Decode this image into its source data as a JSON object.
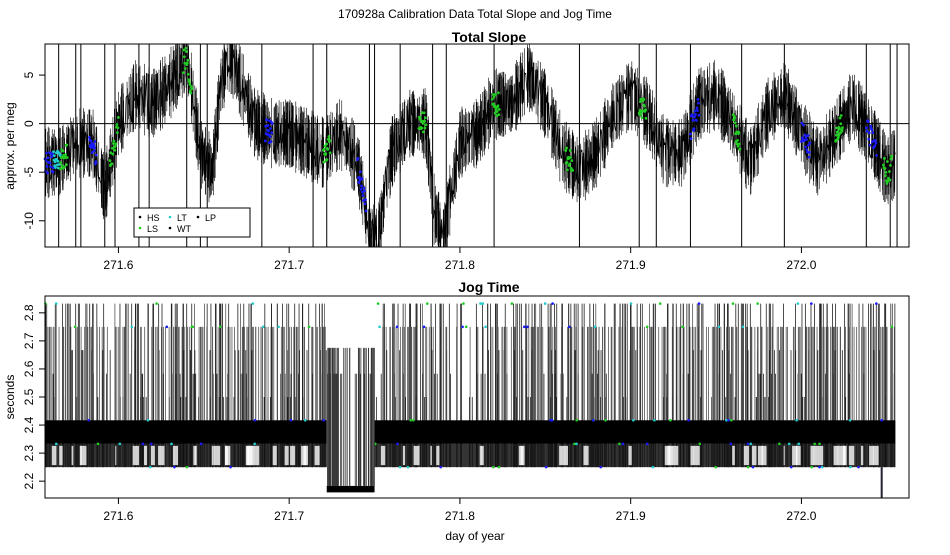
{
  "figure": {
    "suptitle": "170928a   Calibration Data Total Slope and Jog Time",
    "xlabel": "day of year"
  },
  "chart_data": [
    {
      "type": "line",
      "title": "Total Slope",
      "ylabel": "approx. per meg",
      "xlim": [
        271.557,
        272.063
      ],
      "ylim": [
        -12.7,
        8.2
      ],
      "x_ticks": [
        271.6,
        271.7,
        271.8,
        271.9,
        272.0
      ],
      "x_tick_labels": [
        "271.6",
        "271.7",
        "271.8",
        "271.9",
        "272.0"
      ],
      "y_ticks": [
        -10,
        -5,
        0,
        5
      ],
      "y_tick_labels": [
        "-10",
        "-5",
        "0",
        "5"
      ],
      "reference_line_y": 0,
      "legend": {
        "placement": "bottom-left",
        "entries": [
          {
            "label": "HS",
            "color": "#000000"
          },
          {
            "label": "LS",
            "color": "#22cc22"
          },
          {
            "label": "LT",
            "color": "#22cccc"
          },
          {
            "label": "WT",
            "color": "#000000"
          },
          {
            "label": "LP",
            "color": "#000000"
          }
        ]
      },
      "series_trend": {
        "name": "total slope",
        "color": "#000000",
        "x": [
          271.557,
          271.565,
          271.575,
          271.585,
          271.592,
          271.6,
          271.61,
          271.62,
          271.63,
          271.64,
          271.648,
          271.655,
          271.66,
          271.665,
          271.67,
          271.68,
          271.69,
          271.7,
          271.71,
          271.72,
          271.73,
          271.74,
          271.748,
          271.752,
          271.76,
          271.77,
          271.78,
          271.785,
          271.79,
          271.8,
          271.81,
          271.82,
          271.83,
          271.84,
          271.85,
          271.86,
          271.87,
          271.88,
          271.89,
          271.9,
          271.91,
          271.92,
          271.93,
          271.94,
          271.95,
          271.96,
          271.97,
          271.98,
          271.99,
          272.0,
          272.01,
          272.02,
          272.03,
          272.04,
          272.05,
          272.055
        ],
        "y": [
          -4,
          -4,
          -2,
          -2,
          -7,
          0,
          3,
          2,
          4,
          7,
          -3,
          -5,
          4,
          7,
          5,
          0,
          -1,
          -1,
          -2,
          -3,
          -1,
          -4,
          -12,
          -12,
          -3,
          0,
          0,
          -9,
          -12,
          -2,
          -1,
          2,
          2,
          5,
          2,
          -3,
          -5,
          -3,
          1,
          3,
          1,
          -3,
          -3,
          2,
          3,
          0,
          -4,
          1,
          3,
          -1,
          -4,
          -1,
          2,
          -1,
          -5,
          -4
        ]
      },
      "series_colored_segments": [
        {
          "color": "#1a1aff",
          "x_range": [
            271.557,
            271.562
          ]
        },
        {
          "color": "#22cccc",
          "x_range": [
            271.562,
            271.566
          ]
        },
        {
          "color": "#22cc22",
          "x_range": [
            271.566,
            271.57
          ]
        },
        {
          "color": "#1a1aff",
          "x_range": [
            271.583,
            271.587
          ]
        },
        {
          "color": "#22cc22",
          "x_range": [
            271.595,
            271.6
          ]
        },
        {
          "color": "#22cc22",
          "x_range": [
            271.638,
            271.643
          ]
        },
        {
          "color": "#1a1aff",
          "x_range": [
            271.686,
            271.69
          ]
        },
        {
          "color": "#22cc22",
          "x_range": [
            271.72,
            271.724
          ]
        },
        {
          "color": "#1a1aff",
          "x_range": [
            271.74,
            271.745
          ]
        },
        {
          "color": "#22cc22",
          "x_range": [
            271.776,
            271.78
          ]
        },
        {
          "color": "#22cc22",
          "x_range": [
            271.819,
            271.823
          ]
        },
        {
          "color": "#22cc22",
          "x_range": [
            271.862,
            271.866
          ]
        },
        {
          "color": "#22cc22",
          "x_range": [
            271.905,
            271.909
          ]
        },
        {
          "color": "#1a1aff",
          "x_range": [
            271.935,
            271.94
          ]
        },
        {
          "color": "#22cc22",
          "x_range": [
            271.96,
            271.964
          ]
        },
        {
          "color": "#1a1aff",
          "x_range": [
            272.0,
            272.005
          ]
        },
        {
          "color": "#22cc22",
          "x_range": [
            272.02,
            272.024
          ]
        },
        {
          "color": "#1a1aff",
          "x_range": [
            272.038,
            272.044
          ]
        },
        {
          "color": "#22cc22",
          "x_range": [
            272.048,
            272.053
          ]
        }
      ],
      "vertical_spikes_x": [
        271.557,
        271.565,
        271.575,
        271.578,
        271.592,
        271.598,
        271.612,
        271.618,
        271.64,
        271.648,
        271.652,
        271.684,
        271.714,
        271.722,
        271.747,
        271.75,
        271.765,
        271.784,
        271.792,
        271.82,
        271.87,
        271.905,
        271.915,
        271.935,
        271.965,
        271.99,
        272.038,
        272.052,
        272.056
      ]
    },
    {
      "type": "line",
      "title": "Jog Time",
      "ylabel": "seconds",
      "xlim": [
        271.557,
        272.063
      ],
      "ylim": [
        2.14,
        2.86
      ],
      "x_ticks": [
        271.6,
        271.7,
        271.8,
        271.9,
        272.0
      ],
      "x_tick_labels": [
        "271.6",
        "271.7",
        "271.8",
        "271.9",
        "272.0"
      ],
      "y_ticks": [
        2.2,
        2.3,
        2.4,
        2.5,
        2.6,
        2.7,
        2.8
      ],
      "y_tick_labels": [
        "2.2",
        "2.3",
        "2.4",
        "2.5",
        "2.6",
        "2.7",
        "2.8"
      ],
      "levels": [
        2.25,
        2.333,
        2.417,
        2.5,
        2.583,
        2.667,
        2.75,
        2.833
      ],
      "dense_band": {
        "x_range": [
          271.557,
          272.055
        ],
        "y_range": [
          2.333,
          2.417
        ]
      },
      "secondary_band": {
        "x_range": [
          271.557,
          272.055
        ],
        "y_range": [
          2.25,
          2.333
        ]
      },
      "gap_interval": {
        "x_range": [
          271.722,
          271.75
        ],
        "low_block_y_range": [
          2.16,
          2.183
        ],
        "max_level": 2.675
      },
      "min_spike": {
        "x": 272.047,
        "y": 2.14
      }
    }
  ]
}
